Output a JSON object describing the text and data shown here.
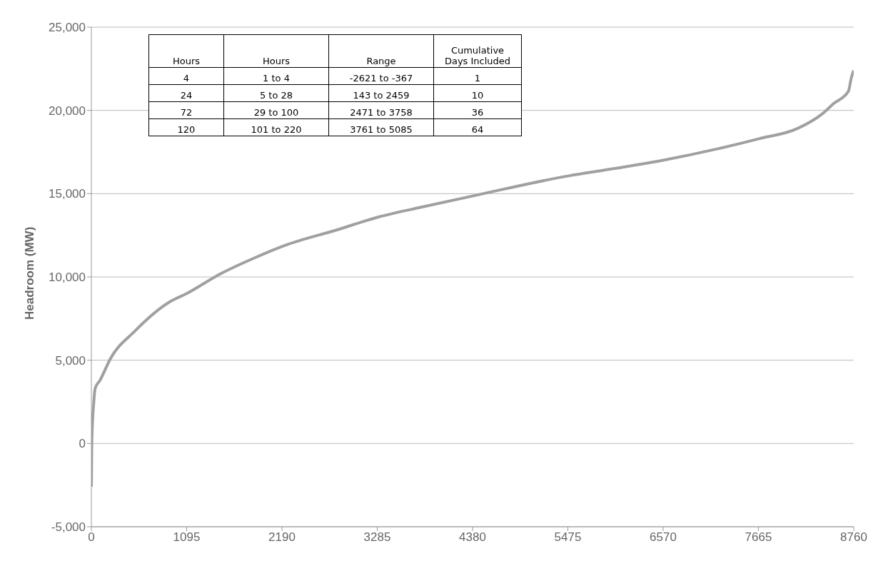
{
  "chart_data": {
    "type": "line",
    "ylabel": "Headroom (MW)",
    "x": [
      0,
      4,
      5,
      28,
      43,
      100,
      220,
      500,
      899,
      1095,
      1481,
      1900,
      2217,
      2825,
      3285,
      3800,
      4380,
      5475,
      6000,
      6570,
      7200,
      7665,
      8116,
      8400,
      8527,
      8699,
      8733,
      8760
    ],
    "series": [
      {
        "color": "#a0a0a0",
        "values": [
          -2600,
          -400,
          100,
          2500,
          3300,
          3800,
          5100,
          6750,
          8500,
          9000,
          10180,
          11200,
          11880,
          12830,
          13580,
          14200,
          14860,
          16060,
          16500,
          17010,
          17700,
          18290,
          18920,
          19800,
          20400,
          21150,
          21980,
          22400
        ]
      }
    ],
    "xlim": [
      0,
      8760
    ],
    "xticks": [
      0,
      1095,
      2190,
      3285,
      4380,
      5475,
      6570,
      7665,
      8760
    ],
    "ylim": [
      -5000,
      25000
    ],
    "yticks": [
      {
        "value": -5000,
        "label": "-5,000"
      },
      {
        "value": 0,
        "label": "0"
      },
      {
        "value": 5000,
        "label": "5,000"
      },
      {
        "value": 10000,
        "label": "10,000"
      },
      {
        "value": 15000,
        "label": "15,000"
      },
      {
        "value": 20000,
        "label": "20,000"
      },
      {
        "value": 25000,
        "label": "25,000"
      }
    ],
    "grid": "y",
    "marker": "none",
    "line_style": "solid",
    "annotations": [
      "Hours",
      "Hours",
      "Range",
      "Cumulative Days Included",
      "4",
      "1 to 4",
      "-2621 to -367",
      "1",
      "24",
      "5 to 28",
      "143 to 2459",
      "10",
      "72",
      "29 to 100",
      "2471 to 3758",
      "36",
      "120",
      "101 to 220",
      "3761 to 5085",
      "64"
    ]
  }
}
